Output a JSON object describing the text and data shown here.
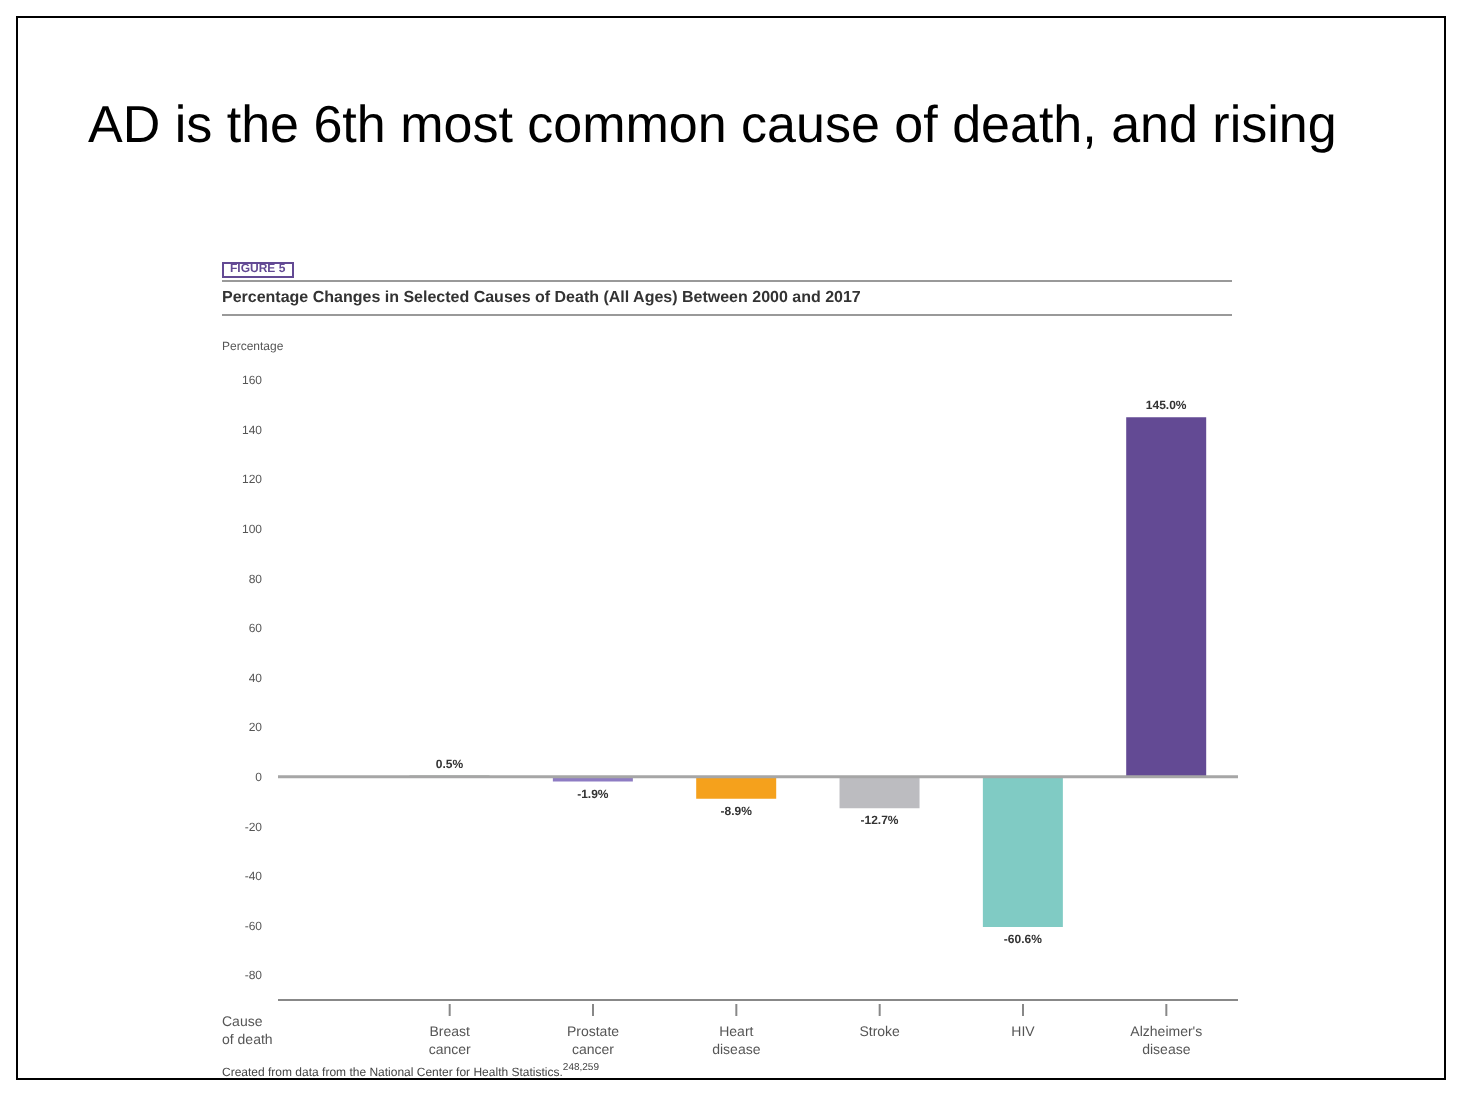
{
  "chart_data": {
    "type": "bar",
    "title": "AD is the 6th most common cause of death, and rising",
    "subtitle": "Percentage Changes in Selected Causes of Death (All Ages) Between 2000 and 2017",
    "ylabel": "Percentage",
    "xlabel": "Cause of death",
    "categories": [
      "Breast cancer",
      "Prostate cancer",
      "Heart disease",
      "Stroke",
      "HIV",
      "Alzheimer's disease"
    ],
    "values": [
      0.5,
      -1.9,
      -8.9,
      -12.7,
      -60.6,
      145.0
    ],
    "colors": [
      "#8f9c8c",
      "#8e7cc3",
      "#f5a11c",
      "#bcbcc0",
      "#80cbc4",
      "#634a94"
    ],
    "value_labels": [
      "0.5%",
      "-1.9%",
      "-8.9%",
      "-12.7%",
      "-60.6%",
      "145.0%"
    ],
    "ylim": [
      -90,
      160
    ],
    "yticks": [
      -80,
      -60,
      -40,
      -20,
      0,
      20,
      40,
      60,
      80,
      100,
      120,
      140,
      160
    ],
    "ref_lines": [
      {
        "axis": "y",
        "value": 0,
        "color": "#a6a6a6"
      }
    ],
    "grid": false,
    "legend": false,
    "annotations": [
      "FIGURE 5",
      "Created from data from the National Center for Health Statistics.$^{248,259}$"
    ]
  }
}
